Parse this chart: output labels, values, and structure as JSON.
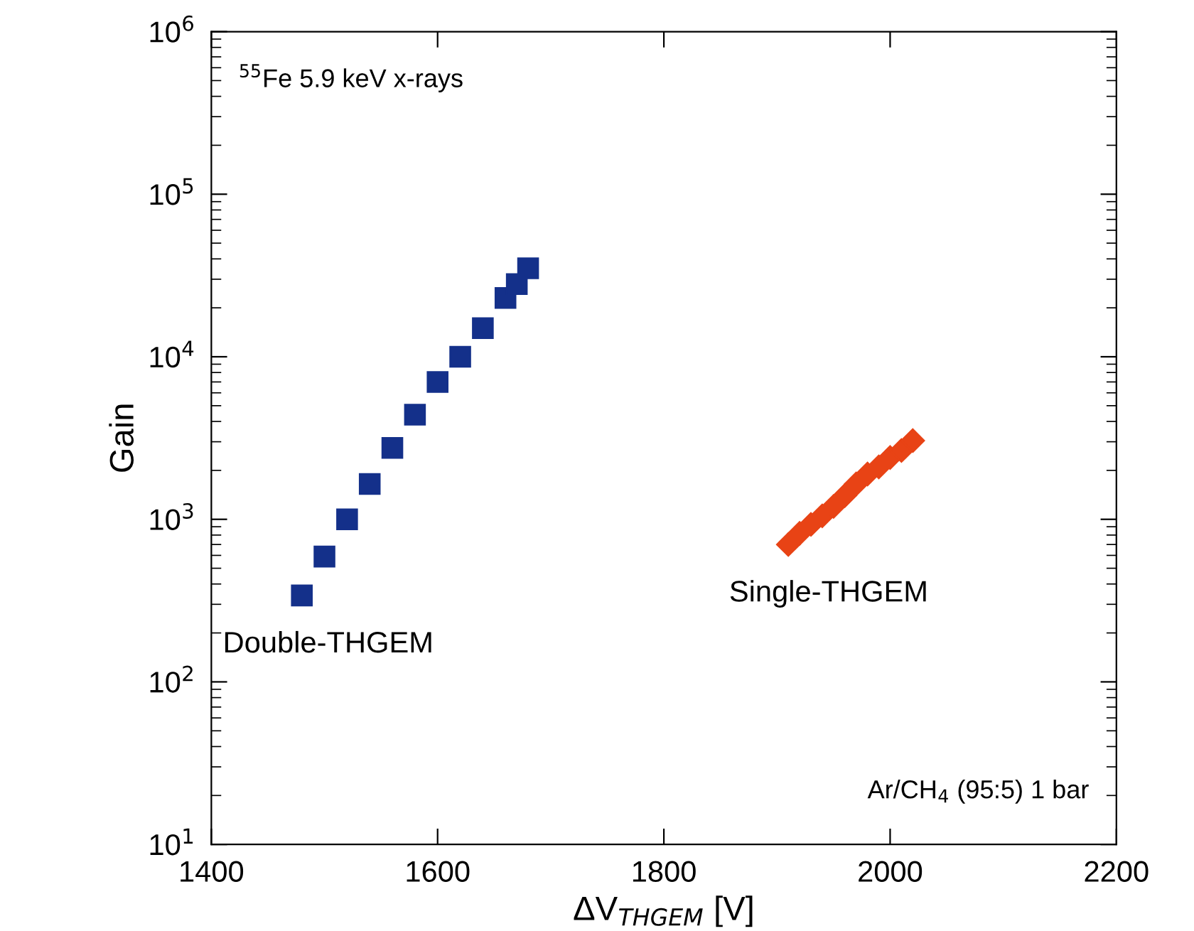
{
  "chart_data": {
    "type": "scatter",
    "xlabel": "ΔV$_{THGEM}$ [V]",
    "ylabel": "Gain",
    "xlim": [
      1400,
      2200
    ],
    "xticks": [
      1400,
      1600,
      1800,
      2000,
      2200
    ],
    "ylim": [
      10,
      1000000
    ],
    "yticks": [
      {
        "value": 10,
        "label": "10$^{1}$"
      },
      {
        "value": 100,
        "label": "10$^{2}$"
      },
      {
        "value": 1000,
        "label": "10$^{3}$"
      },
      {
        "value": 10000,
        "label": "10$^{4}$"
      },
      {
        "value": 100000,
        "label": "10$^{5}$"
      },
      {
        "value": 1000000,
        "label": "10$^{6}$"
      }
    ],
    "log": "y",
    "grid": false,
    "legend": false,
    "annotations": [
      "$^{55}$Fe 5.9 keV x-rays",
      "Ar/CH$_{4}$ (95:5) 1 bar"
    ],
    "series": [
      {
        "name": "Double-THGEM",
        "color": "#14308a",
        "marker": "square",
        "x": [
          1480,
          1500,
          1520,
          1540,
          1560,
          1580,
          1600,
          1620,
          1640,
          1660,
          1670,
          1680
        ],
        "values": [
          340,
          590,
          1000,
          1650,
          2750,
          4400,
          7000,
          10000,
          15000,
          23000,
          28000,
          35000
        ]
      },
      {
        "name": "Single-THGEM",
        "color": "#e84315",
        "marker": "diamond",
        "x": [
          1910,
          1920,
          1930,
          1940,
          1950,
          1960,
          1970,
          1980,
          1990,
          2000,
          2010,
          2020
        ],
        "values": [
          700,
          820,
          930,
          1050,
          1200,
          1400,
          1650,
          1900,
          2100,
          2400,
          2650,
          3050
        ]
      }
    ]
  }
}
